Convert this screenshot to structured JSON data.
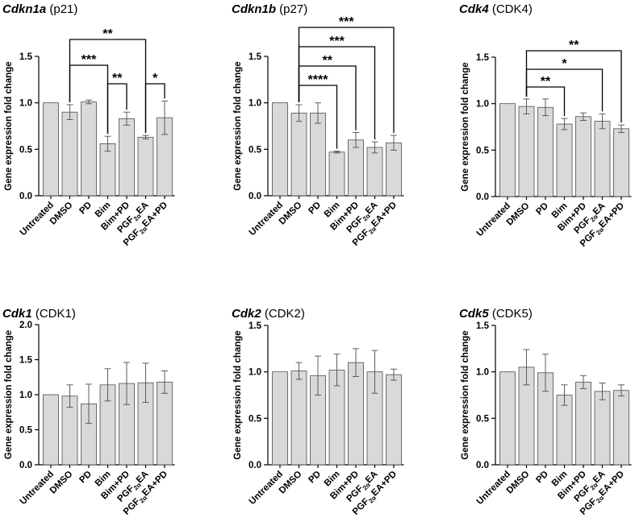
{
  "chart_data": [
    {
      "type": "bar",
      "title": {
        "gene": "Cdkn1a",
        "protein": "(p21)"
      },
      "ylabel": "Gene expression fold change",
      "ylim": [
        0,
        1.5
      ],
      "yticks": [
        "0.0",
        "0.5",
        "1.0",
        "1.5"
      ],
      "categories": [
        "Untreated",
        "DMSO",
        "PD",
        "Bim",
        "Bim+PD",
        "PGF2αEA",
        "PGF2αEA+PD"
      ],
      "values": [
        1.0,
        0.9,
        1.01,
        0.56,
        0.83,
        0.63,
        0.84
      ],
      "errors": [
        0,
        0.08,
        0.02,
        0.08,
        0.07,
        0.02,
        0.18
      ],
      "significance": [
        {
          "from": "DMSO",
          "to": "PGF2αEA",
          "label": "**"
        },
        {
          "from": "DMSO",
          "to": "Bim",
          "label": "***"
        },
        {
          "from": "Bim",
          "to": "Bim+PD",
          "label": "**"
        },
        {
          "from": "PGF2αEA",
          "to": "PGF2αEA+PD",
          "label": "*"
        }
      ]
    },
    {
      "type": "bar",
      "title": {
        "gene": "Cdkn1b",
        "protein": "(p27)"
      },
      "ylabel": "Gene expression fold change",
      "ylim": [
        0,
        1.5
      ],
      "yticks": [
        "0.0",
        "0.5",
        "1.0",
        "1.5"
      ],
      "categories": [
        "Untreated",
        "DMSO",
        "PD",
        "Bim",
        "Bim+PD",
        "PGF2αEA",
        "PGF2αEA+PD"
      ],
      "values": [
        1.0,
        0.89,
        0.89,
        0.47,
        0.6,
        0.52,
        0.57
      ],
      "errors": [
        0,
        0.09,
        0.11,
        0.01,
        0.08,
        0.06,
        0.08
      ],
      "significance": [
        {
          "from": "DMSO",
          "to": "PGF2αEA+PD",
          "label": "***"
        },
        {
          "from": "DMSO",
          "to": "PGF2αEA",
          "label": "***"
        },
        {
          "from": "DMSO",
          "to": "Bim+PD",
          "label": "**"
        },
        {
          "from": "DMSO",
          "to": "Bim",
          "label": "****"
        }
      ]
    },
    {
      "type": "bar",
      "title": {
        "gene": "Cdk4",
        "protein": "(CDK4)"
      },
      "ylabel": "Gene expression fold change",
      "ylim": [
        0,
        1.5
      ],
      "yticks": [
        "0.0",
        "0.5",
        "1.0",
        "1.5"
      ],
      "categories": [
        "Untreated",
        "DMSO",
        "PD",
        "Bim",
        "Bim+PD",
        "PGF2αEA",
        "PGF2αEA+PD"
      ],
      "values": [
        1.0,
        0.97,
        0.96,
        0.78,
        0.86,
        0.81,
        0.73
      ],
      "errors": [
        0,
        0.08,
        0.09,
        0.06,
        0.04,
        0.08,
        0.04
      ],
      "significance": [
        {
          "from": "DMSO",
          "to": "PGF2αEA+PD",
          "label": "**"
        },
        {
          "from": "DMSO",
          "to": "PGF2αEA",
          "label": "*"
        },
        {
          "from": "DMSO",
          "to": "Bim",
          "label": "**"
        }
      ]
    },
    {
      "type": "bar",
      "title": {
        "gene": "Cdk1",
        "protein": "(CDK1)"
      },
      "ylabel": "Gene expression fold change",
      "ylim": [
        0,
        2.0
      ],
      "yticks": [
        "0.0",
        "0.5",
        "1.0",
        "1.5",
        "2.0"
      ],
      "categories": [
        "Untreated",
        "DMSO",
        "PD",
        "Bim",
        "Bim+PD",
        "PGF2αEA",
        "PGF2αEA+PD"
      ],
      "values": [
        1.0,
        0.98,
        0.87,
        1.14,
        1.16,
        1.17,
        1.18
      ],
      "errors": [
        0,
        0.16,
        0.28,
        0.23,
        0.3,
        0.28,
        0.16
      ],
      "significance": []
    },
    {
      "type": "bar",
      "title": {
        "gene": "Cdk2",
        "protein": "(CDK2)"
      },
      "ylabel": "Gene expression fold change",
      "ylim": [
        0,
        1.5
      ],
      "yticks": [
        "0.0",
        "0.5",
        "1.0",
        "1.5"
      ],
      "categories": [
        "Untreated",
        "DMSO",
        "PD",
        "Bim",
        "Bim+PD",
        "PGF2αEA",
        "PGF2αEA+PD"
      ],
      "values": [
        1.0,
        1.01,
        0.96,
        1.02,
        1.1,
        1.0,
        0.97
      ],
      "errors": [
        0,
        0.09,
        0.21,
        0.17,
        0.15,
        0.23,
        0.06
      ],
      "significance": []
    },
    {
      "type": "bar",
      "title": {
        "gene": "Cdk5",
        "protein": "(CDK5)"
      },
      "ylabel": "Gene expression fold change",
      "ylim": [
        0,
        1.5
      ],
      "yticks": [
        "0.0",
        "0.5",
        "1.0",
        "1.5"
      ],
      "categories": [
        "Untreated",
        "DMSO",
        "PD",
        "Bim",
        "Bim+PD",
        "PGF2αEA",
        "PGF2αEA+PD"
      ],
      "values": [
        1.0,
        1.05,
        0.99,
        0.75,
        0.89,
        0.79,
        0.8
      ],
      "errors": [
        0,
        0.19,
        0.2,
        0.11,
        0.07,
        0.09,
        0.06
      ],
      "significance": []
    }
  ]
}
